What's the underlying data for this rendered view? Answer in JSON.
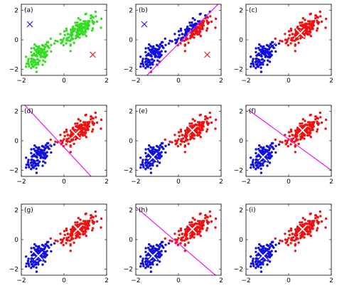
{
  "colors": {
    "green": "#33dd22",
    "blue": "#1111dd",
    "red": "#ee1111",
    "magenta": "#ee11ee",
    "white": "#ffffff"
  },
  "chart_data": [
    {
      "type": "scatter",
      "label": "(a)",
      "xlim": [
        -2,
        2
      ],
      "ylim": [
        -2.4,
        2.4
      ],
      "xticks": [
        -2,
        0,
        2
      ],
      "yticks": [
        -2,
        0,
        2
      ],
      "xtick_labels": [
        "−2",
        "0",
        "2"
      ],
      "ytick_labels": [
        "−2",
        "0",
        "2"
      ],
      "grid": false,
      "points": "green",
      "centroids": [
        {
          "color": "blue",
          "x": -1.6,
          "y": 1.05,
          "style": "x"
        },
        {
          "color": "red",
          "x": 1.35,
          "y": -1.0,
          "style": "x"
        }
      ],
      "boundary": null
    },
    {
      "type": "scatter",
      "label": "(b)",
      "xlim": [
        -2,
        2
      ],
      "ylim": [
        -2.4,
        2.4
      ],
      "xticks": [
        -2,
        0,
        2
      ],
      "yticks": [
        -2,
        0,
        2
      ],
      "xtick_labels": [
        "−2",
        "0",
        "2"
      ],
      "ytick_labels": [
        "−2",
        "0",
        "2"
      ],
      "grid": false,
      "points": "split",
      "centroids": [
        {
          "color": "blue",
          "x": -1.6,
          "y": 1.05,
          "style": "x"
        },
        {
          "color": "red",
          "x": 1.35,
          "y": -1.0,
          "style": "x"
        }
      ],
      "boundary": {
        "p1": [
          -1.9,
          -3.0
        ],
        "p2": [
          2.0,
          2.6
        ]
      }
    },
    {
      "type": "scatter",
      "label": "(c)",
      "xlim": [
        -2,
        2
      ],
      "ylim": [
        -2.4,
        2.4
      ],
      "xticks": [
        -2,
        0,
        2
      ],
      "yticks": [
        -2,
        0,
        2
      ],
      "xtick_labels": [
        "−2",
        "0",
        "2"
      ],
      "ytick_labels": [
        "−2",
        "0",
        "2"
      ],
      "grid": false,
      "points": "split",
      "centroids": [
        {
          "color": "blue",
          "x": -0.75,
          "y": -0.4,
          "style": "x"
        },
        {
          "color": "red",
          "x": 0.55,
          "y": 0.45,
          "style": "X"
        }
      ],
      "boundary": null
    },
    {
      "type": "scatter",
      "label": "(d)",
      "xlim": [
        -2,
        2
      ],
      "ylim": [
        -2.4,
        2.4
      ],
      "xticks": [
        -2,
        0,
        2
      ],
      "yticks": [
        -2,
        0,
        2
      ],
      "xtick_labels": [
        "−2",
        "0",
        "2"
      ],
      "ytick_labels": [
        "−2",
        "0",
        "2"
      ],
      "grid": false,
      "points": "split",
      "centroids": [
        {
          "color": "blue",
          "x": -0.75,
          "y": -0.4,
          "style": "x"
        },
        {
          "color": "red",
          "x": 0.55,
          "y": 0.45,
          "style": "X"
        }
      ],
      "boundary": {
        "p1": [
          -1.9,
          2.5
        ],
        "p2": [
          1.4,
          -2.6
        ]
      }
    },
    {
      "type": "scatter",
      "label": "(e)",
      "xlim": [
        -2,
        2
      ],
      "ylim": [
        -2.4,
        2.4
      ],
      "xticks": [
        -2,
        0,
        2
      ],
      "yticks": [
        -2,
        0,
        2
      ],
      "xtick_labels": [
        "−2",
        "0",
        "2"
      ],
      "ytick_labels": [
        "−2",
        "0",
        "2"
      ],
      "grid": false,
      "points": "split",
      "centroids": [
        {
          "color": "blue",
          "x": -1.2,
          "y": -1.1,
          "style": "X"
        },
        {
          "color": "red",
          "x": 0.65,
          "y": 0.7,
          "style": "X"
        }
      ],
      "boundary": null
    },
    {
      "type": "scatter",
      "label": "(f)",
      "xlim": [
        -2,
        2
      ],
      "ylim": [
        -2.4,
        2.4
      ],
      "xticks": [
        -2,
        0,
        2
      ],
      "yticks": [
        -2,
        0,
        2
      ],
      "xtick_labels": [
        "−2",
        "0",
        "2"
      ],
      "ytick_labels": [
        "−2",
        "0",
        "2"
      ],
      "grid": false,
      "points": "split",
      "centroids": [
        {
          "color": "blue",
          "x": -1.2,
          "y": -1.1,
          "style": "X"
        },
        {
          "color": "red",
          "x": 0.65,
          "y": 0.7,
          "style": "X"
        }
      ],
      "boundary": {
        "p1": [
          -1.9,
          2.1
        ],
        "p2": [
          2.2,
          -2.2
        ]
      }
    },
    {
      "type": "scatter",
      "label": "(g)",
      "xlim": [
        -2,
        2
      ],
      "ylim": [
        -2.4,
        2.4
      ],
      "xticks": [
        -2,
        0,
        2
      ],
      "yticks": [
        -2,
        0,
        2
      ],
      "xtick_labels": [
        "−2",
        "0",
        "2"
      ],
      "ytick_labels": [
        "−2",
        "0",
        "2"
      ],
      "grid": false,
      "points": "split",
      "centroids": [
        {
          "color": "blue",
          "x": -1.2,
          "y": -1.1,
          "style": "X"
        },
        {
          "color": "red",
          "x": 0.65,
          "y": 0.7,
          "style": "X"
        }
      ],
      "boundary": null
    },
    {
      "type": "scatter",
      "label": "(h)",
      "xlim": [
        -2,
        2
      ],
      "ylim": [
        -2.4,
        2.4
      ],
      "xticks": [
        -2,
        0,
        2
      ],
      "yticks": [
        -2,
        0,
        2
      ],
      "xtick_labels": [
        "−2",
        "0",
        "2"
      ],
      "ytick_labels": [
        "−2",
        "0",
        "2"
      ],
      "grid": false,
      "points": "split",
      "centroids": [
        {
          "color": "blue",
          "x": -1.2,
          "y": -1.1,
          "style": "X"
        },
        {
          "color": "red",
          "x": 0.65,
          "y": 0.7,
          "style": "X"
        }
      ],
      "boundary": {
        "p1": [
          -2.0,
          2.2
        ],
        "p2": [
          1.9,
          -2.6
        ]
      }
    },
    {
      "type": "scatter",
      "label": "(i)",
      "xlim": [
        -2,
        2
      ],
      "ylim": [
        -2.4,
        2.4
      ],
      "xticks": [
        -2,
        0,
        2
      ],
      "yticks": [
        -2,
        0,
        2
      ],
      "xtick_labels": [
        "−2",
        "0",
        "2"
      ],
      "ytick_labels": [
        "−2",
        "0",
        "2"
      ],
      "grid": false,
      "points": "split",
      "centroids": [
        {
          "color": "blue",
          "x": -1.2,
          "y": -1.1,
          "style": "X"
        },
        {
          "color": "red",
          "x": 0.65,
          "y": 0.7,
          "style": "X"
        }
      ],
      "boundary": null
    }
  ]
}
